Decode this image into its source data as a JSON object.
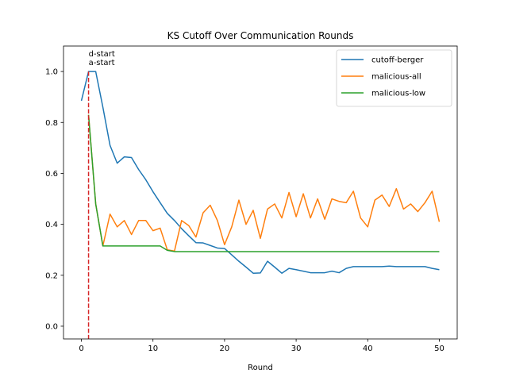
{
  "chart_data": {
    "type": "line",
    "title": "KS Cutoff Over Communication Rounds",
    "xlabel": "Round",
    "ylabel": "",
    "xlim": [
      -2.5,
      52.5
    ],
    "ylim": [
      -0.05,
      1.1
    ],
    "xticks": [
      0,
      10,
      20,
      30,
      40,
      50
    ],
    "yticks": [
      0.0,
      0.2,
      0.4,
      0.6,
      0.8,
      1.0
    ],
    "xtick_labels": [
      "0",
      "10",
      "20",
      "30",
      "40",
      "50"
    ],
    "ytick_labels": [
      "0.0",
      "0.2",
      "0.4",
      "0.6",
      "0.8",
      "1.0"
    ],
    "grid": false,
    "legend": "top-right",
    "x": [
      0,
      1,
      2,
      3,
      4,
      5,
      6,
      7,
      8,
      9,
      10,
      11,
      12,
      13,
      14,
      15,
      16,
      17,
      18,
      19,
      20,
      21,
      22,
      23,
      24,
      25,
      26,
      27,
      28,
      29,
      30,
      31,
      32,
      33,
      34,
      35,
      36,
      37,
      38,
      39,
      40,
      41,
      42,
      43,
      44,
      45,
      46,
      47,
      48,
      49,
      50
    ],
    "series": [
      {
        "name": "cutoff-berger",
        "color": "#1f77b4",
        "values": [
          0.885,
          1.0,
          1.0,
          0.86,
          0.71,
          0.64,
          0.665,
          0.662,
          0.615,
          0.575,
          0.528,
          0.485,
          0.443,
          0.415,
          0.383,
          0.355,
          0.328,
          0.327,
          0.317,
          0.307,
          0.305,
          0.28,
          0.255,
          0.232,
          0.208,
          0.209,
          0.255,
          0.232,
          0.208,
          0.227,
          0.222,
          0.216,
          0.21,
          0.21,
          0.21,
          0.216,
          0.21,
          0.227,
          0.234,
          0.234,
          0.234,
          0.234,
          0.234,
          0.236,
          0.234,
          0.234,
          0.234,
          0.234,
          0.234,
          0.227,
          0.222
        ]
      },
      {
        "name": "malicious-all",
        "color": "#ff7f0e",
        "values": [
          null,
          0.83,
          0.48,
          0.315,
          0.44,
          0.39,
          0.415,
          0.36,
          0.415,
          0.415,
          0.375,
          0.385,
          0.3,
          0.295,
          0.415,
          0.395,
          0.35,
          0.445,
          0.475,
          0.415,
          0.32,
          0.39,
          0.495,
          0.4,
          0.455,
          0.345,
          0.46,
          0.48,
          0.425,
          0.525,
          0.43,
          0.52,
          0.425,
          0.5,
          0.42,
          0.5,
          0.49,
          0.485,
          0.53,
          0.425,
          0.39,
          0.495,
          0.515,
          0.47,
          0.54,
          0.46,
          0.48,
          0.45,
          0.485,
          0.53,
          0.41
        ]
      },
      {
        "name": "malicious-low",
        "color": "#2ca02c",
        "values": [
          null,
          0.83,
          0.48,
          0.315,
          0.315,
          0.315,
          0.315,
          0.315,
          0.315,
          0.315,
          0.315,
          0.315,
          0.298,
          0.293,
          0.293,
          0.293,
          0.293,
          0.293,
          0.293,
          0.293,
          0.293,
          0.293,
          0.293,
          0.293,
          0.293,
          0.293,
          0.293,
          0.293,
          0.293,
          0.293,
          0.293,
          0.293,
          0.293,
          0.293,
          0.293,
          0.293,
          0.293,
          0.293,
          0.293,
          0.293,
          0.293,
          0.293,
          0.293,
          0.293,
          0.293,
          0.293,
          0.293,
          0.293,
          0.293,
          0.293,
          0.293
        ]
      }
    ],
    "vline": {
      "x": 1,
      "color": "#d62728",
      "style": "dashed"
    },
    "annotations": [
      {
        "text": "d-start",
        "x": 1,
        "y": 1.06
      },
      {
        "text": "a-start",
        "x": 1,
        "y": 1.025
      }
    ]
  }
}
